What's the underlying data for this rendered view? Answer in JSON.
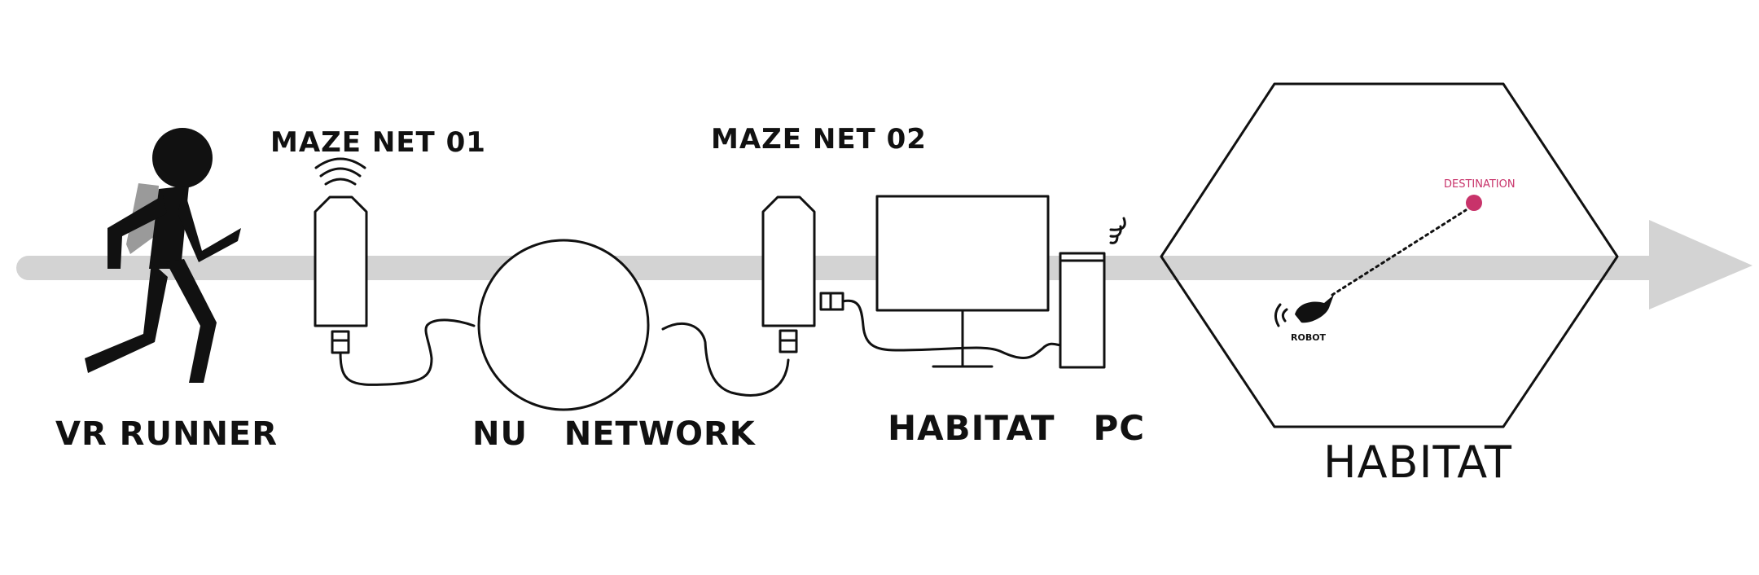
{
  "labels": {
    "vr_runner": "VR RUNNER",
    "maze_net_01": "MAZE NET 01",
    "maze_net_02": "MAZE NET 02",
    "nu_network": "NU   NETWORK",
    "habitat_pc": "HABITAT   PC",
    "habitat": "HABITAT",
    "destination": "DESTINATION",
    "robot": "ROBOT"
  },
  "colors": {
    "ink": "#111111",
    "flow_arrow": "#d3d3d3",
    "backpack": "#9a9a9a",
    "destination": "#c8336a"
  },
  "icons": {
    "runner": "person-running-icon",
    "router": "wireless-router-icon",
    "network": "network-circle-icon",
    "monitor": "monitor-icon",
    "tower": "pc-tower-icon",
    "robot": "robot-icon"
  }
}
